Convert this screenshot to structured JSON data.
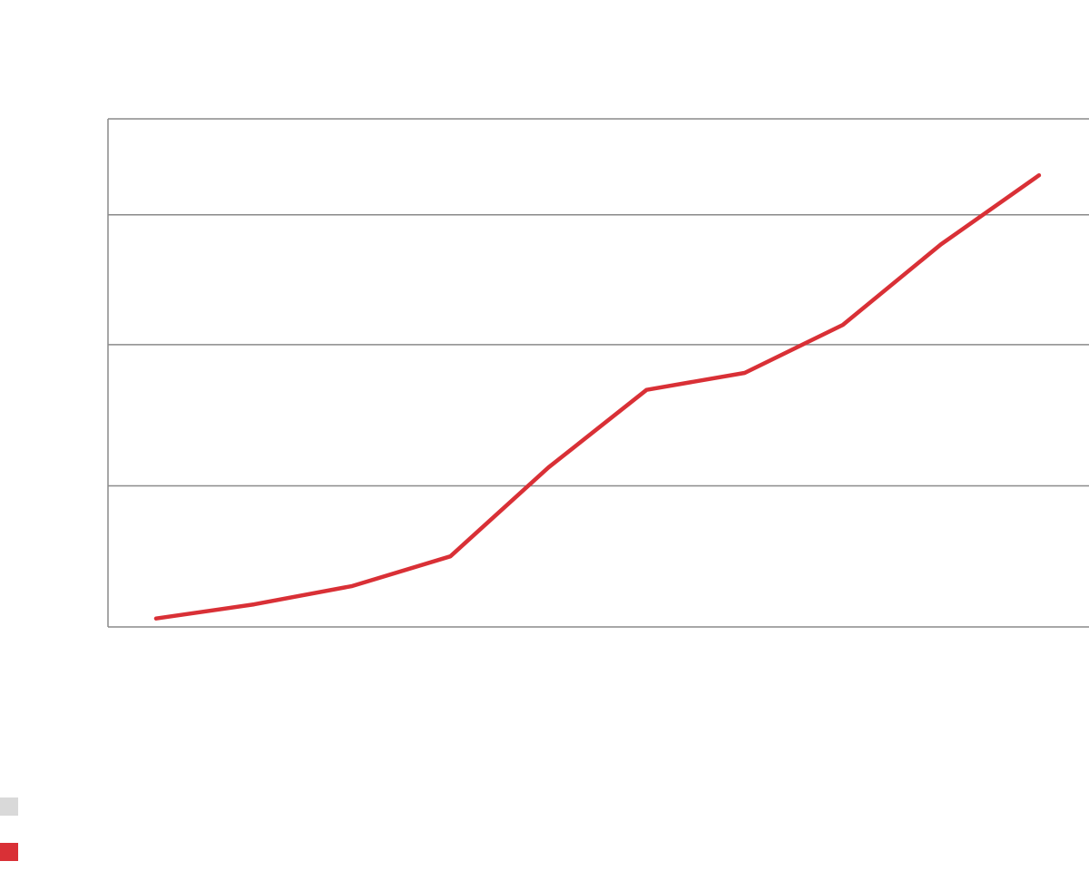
{
  "chart_data": {
    "type": "line",
    "title": "",
    "xlabel": "",
    "ylabel": "",
    "x": [
      1,
      2,
      3,
      4,
      5,
      6,
      7,
      8,
      9,
      10
    ],
    "ylim": [
      0,
      36
    ],
    "series": [
      {
        "name": "",
        "color": "#d93036",
        "values": [
          0.6,
          1.6,
          2.9,
          5.0,
          11.3,
          16.8,
          18.0,
          21.4,
          27.1,
          32.0
        ]
      }
    ],
    "gridlines": [
      10,
      20,
      29.2
    ],
    "legend": {
      "placement": "bottom-left",
      "swatches": [
        {
          "color": "#d9d9d9"
        },
        {
          "color": "#d93036"
        }
      ]
    },
    "grid": true
  }
}
